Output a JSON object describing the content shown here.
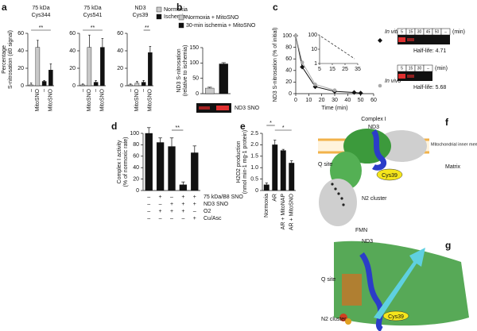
{
  "panel_labels": [
    "a",
    "b",
    "c",
    "d",
    "e",
    "f",
    "g"
  ],
  "chart_data": [
    {
      "type": "bar",
      "title": [
        "75 kDa",
        "Cys344"
      ],
      "ylabel": [
        "Percentage",
        "S-nitrosation (d0 signal)"
      ],
      "categories": [
        "–",
        "MitoSNO"
      ],
      "rotate_labels": true,
      "series": [
        {
          "color": "#c8c8c8",
          "values": [
            1,
            44
          ],
          "errors": [
            2,
            8
          ]
        },
        {
          "color": "#111111",
          "values": [
            5,
            18
          ],
          "errors": [
            1,
            7
          ]
        }
      ],
      "ylim": [
        0,
        60
      ],
      "yticks": [
        0,
        20,
        40,
        60
      ],
      "annotations": [
        "**"
      ]
    },
    {
      "type": "bar",
      "title": [
        "75 kDa",
        "Cys541"
      ],
      "categories": [
        "–",
        "MitoSNO"
      ],
      "rotate_labels": true,
      "series": [
        {
          "color": "#c8c8c8",
          "values": [
            1,
            44
          ],
          "errors": [
            1,
            14
          ]
        },
        {
          "color": "#111111",
          "values": [
            4,
            44
          ],
          "errors": [
            2,
            10
          ]
        }
      ],
      "ylim": [
        0,
        60
      ],
      "yticks": [
        0,
        20,
        40,
        60
      ],
      "annotations": [
        "**"
      ]
    },
    {
      "type": "bar",
      "title": [
        "ND3",
        "Cys39"
      ],
      "categories": [
        "–",
        "MitoSNO"
      ],
      "rotate_labels": true,
      "legend": "upper right",
      "series": [
        {
          "name": "Normoxia",
          "color": "#c8c8c8",
          "values": [
            1,
            3
          ],
          "errors": [
            1,
            2
          ]
        },
        {
          "name": "Ischemia",
          "color": "#111111",
          "values": [
            4,
            38
          ],
          "errors": [
            2,
            7
          ]
        }
      ],
      "ylim": [
        0,
        60
      ],
      "yticks": [
        0,
        20,
        40,
        60
      ],
      "annotations": [
        "**"
      ]
    },
    {
      "type": "bar",
      "ylabel": [
        "ND3 S-nitrosation",
        "(relative to ischemia)"
      ],
      "legend": "top",
      "gel_label": "ND3 SNO",
      "series": [
        {
          "name": "Normoxia + MitoSNO",
          "color": "#c8c8c8",
          "values": [
            18
          ],
          "errors": [
            3
          ]
        },
        {
          "name": "30-min ischemia + MitoSNO",
          "color": "#111111",
          "values": [
            97
          ],
          "errors": [
            4
          ]
        }
      ],
      "ylim": [
        0,
        150
      ],
      "yticks": [
        0,
        50,
        100,
        150
      ]
    },
    {
      "type": "line",
      "ylabel": [
        "ND3 S-nitrosation (% of initial)"
      ],
      "xlabel": "Time (min)",
      "series": [
        {
          "name": "In vitro",
          "color": "#111111",
          "marker": "diamond",
          "x": [
            0,
            5,
            15,
            30,
            45,
            50
          ],
          "values": [
            100,
            46,
            12,
            4,
            2,
            1
          ]
        },
        {
          "name": "In vivo",
          "color": "#aaaaaa",
          "marker": "circle",
          "x": [
            0,
            5,
            15,
            30
          ],
          "values": [
            100,
            54,
            16,
            6
          ]
        }
      ],
      "xlim": [
        0,
        60
      ],
      "xticks": [
        0,
        10,
        20,
        30,
        40,
        50,
        60
      ],
      "ylim": [
        0,
        100
      ],
      "yticks": [
        0,
        20,
        40,
        60,
        80,
        100
      ],
      "inset": {
        "log": true,
        "xlim": [
          5,
          35
        ],
        "xticks": [
          5,
          15,
          25,
          35
        ],
        "ylim": [
          1,
          100
        ],
        "yticks": [
          1,
          10,
          100
        ]
      },
      "gel_unit": "(min)",
      "gels": [
        {
          "lanes": [
            "5",
            "15",
            "30",
            "45",
            "50",
            "–"
          ],
          "half_life": "Half-life: 4.71"
        },
        {
          "lanes": [
            "5",
            "15",
            "30",
            "–"
          ],
          "half_life": "Half-life: 5.68"
        }
      ]
    },
    {
      "type": "bar",
      "ylabel": [
        "Complex I activity",
        "(% of normoxic rate)"
      ],
      "color": "#111111",
      "values": [
        100,
        84,
        77,
        10,
        66
      ],
      "errors": [
        10,
        8,
        15,
        5,
        12
      ],
      "ylim": [
        0,
        100
      ],
      "yticks": [
        0,
        20,
        40,
        60,
        80,
        100
      ],
      "annotations": [
        "**"
      ],
      "conditions": [
        {
          "label": "75 kDa/B8 SNO",
          "signs": [
            "–",
            "+",
            "–",
            "+",
            "+"
          ]
        },
        {
          "label": "ND3 SNO",
          "signs": [
            "–",
            "–",
            "+",
            "+",
            "+"
          ]
        },
        {
          "label": "O2",
          "signs": [
            "–",
            "+",
            "+",
            "+",
            "–"
          ]
        },
        {
          "label": "Cu/Asc",
          "signs": [
            "–",
            "–",
            "–",
            "–",
            "+"
          ]
        }
      ]
    },
    {
      "type": "bar",
      "ylabel": [
        "H2O2 production",
        "(nmol min-1 mg-1 protein)"
      ],
      "color": "#111111",
      "categories": [
        "Normoxia",
        "AR",
        "AR + MitoNAP",
        "AR + MitoSNO"
      ],
      "rotate_labels": true,
      "values": [
        0.25,
        2.0,
        1.75,
        1.2
      ],
      "errors": [
        0.08,
        0.2,
        0.05,
        0.1
      ],
      "ylim": [
        0,
        2.5
      ],
      "yticks": [
        0,
        0.5,
        {
          "value": 1,
          "label": "1.0"
        },
        1.5,
        {
          "value": 2,
          "label": "2.0"
        },
        2.5
      ],
      "annotations": [
        "*",
        "*"
      ]
    }
  ],
  "figure_f": {
    "labels": [
      "Complex I",
      "ND3",
      "Mitochondrial inner membrane",
      "Matrix",
      "Q site",
      "Cys39",
      "N2 cluster",
      "FMN"
    ]
  },
  "figure_g": {
    "labels": [
      "ND3",
      "Q site",
      "N2 cluster",
      "Cys39"
    ]
  }
}
